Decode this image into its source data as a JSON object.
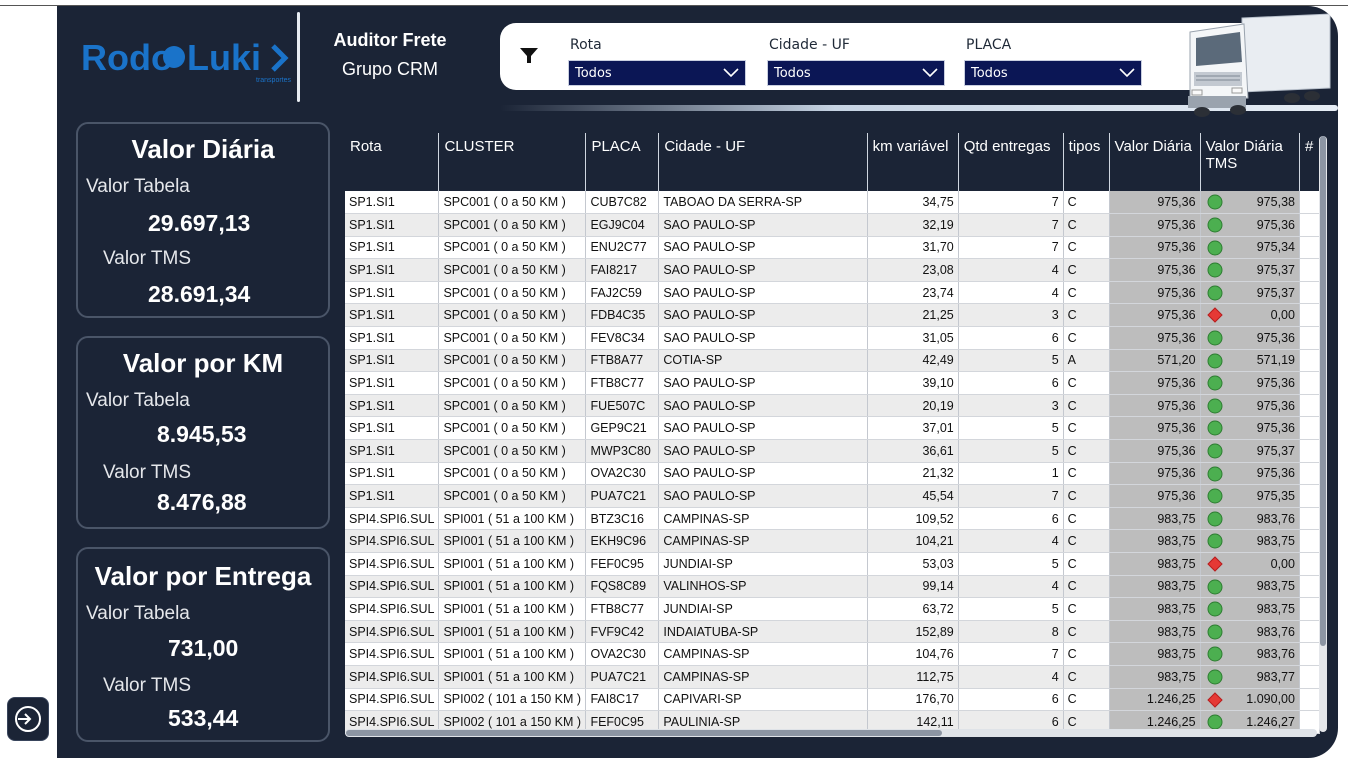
{
  "brand": {
    "logo_text_left": "Rodo",
    "logo_text_right": "Luki",
    "logo_tagline": "transportes",
    "title": "Auditor Frete",
    "subtitle": "Grupo CRM",
    "accent": "#1a73c9",
    "panel_bg": "#1b2436"
  },
  "filters": [
    {
      "label": "Rota",
      "value": "Todos"
    },
    {
      "label": "Cidade - UF",
      "value": "Todos"
    },
    {
      "label": "PLACA",
      "value": "Todos"
    }
  ],
  "cards": {
    "diaria": {
      "title": "Valor Diária",
      "lbl1": "Valor Tabela",
      "val1": "29.697,13",
      "lbl2": "Valor TMS",
      "val2": "28.691,34"
    },
    "km": {
      "title": "Valor por KM",
      "lbl1": "Valor Tabela",
      "val1": "8.945,53",
      "lbl2": "Valor TMS",
      "val2": "8.476,88"
    },
    "entrega": {
      "title": "Valor por Entrega",
      "lbl1": "Valor Tabela",
      "val1": "731,00",
      "lbl2": "Valor TMS",
      "val2": "533,44"
    }
  },
  "table": {
    "headers": [
      "Rota",
      "CLUSTER",
      "PLACA",
      "Cidade - UF",
      "km variável",
      "Qtd entregas",
      "tipos",
      "Valor Diária",
      "Valor Diária TMS",
      "#"
    ],
    "status_colors": {
      "ok": "#4caf50",
      "alert": "#e53935"
    },
    "rows": [
      [
        "SP1.SI1",
        "SPC001 ( 0 a 50 KM )",
        "CUB7C82",
        "TABOAO DA SERRA-SP",
        "34,75",
        "7",
        "C",
        "975,36",
        "ok",
        "975,38"
      ],
      [
        "SP1.SI1",
        "SPC001 ( 0 a 50 KM )",
        "EGJ9C04",
        "SAO PAULO-SP",
        "32,19",
        "7",
        "C",
        "975,36",
        "ok",
        "975,36"
      ],
      [
        "SP1.SI1",
        "SPC001 ( 0 a 50 KM )",
        "ENU2C77",
        "SAO PAULO-SP",
        "31,70",
        "7",
        "C",
        "975,36",
        "ok",
        "975,34"
      ],
      [
        "SP1.SI1",
        "SPC001 ( 0 a 50 KM )",
        "FAI8217",
        "SAO PAULO-SP",
        "23,08",
        "4",
        "C",
        "975,36",
        "ok",
        "975,37"
      ],
      [
        "SP1.SI1",
        "SPC001 ( 0 a 50 KM )",
        "FAJ2C59",
        "SAO PAULO-SP",
        "23,74",
        "4",
        "C",
        "975,36",
        "ok",
        "975,37"
      ],
      [
        "SP1.SI1",
        "SPC001 ( 0 a 50 KM )",
        "FDB4C35",
        "SAO PAULO-SP",
        "21,25",
        "3",
        "C",
        "975,36",
        "alert",
        "0,00"
      ],
      [
        "SP1.SI1",
        "SPC001 ( 0 a 50 KM )",
        "FEV8C34",
        "SAO PAULO-SP",
        "31,05",
        "6",
        "C",
        "975,36",
        "ok",
        "975,36"
      ],
      [
        "SP1.SI1",
        "SPC001 ( 0 a 50 KM )",
        "FTB8A77",
        "COTIA-SP",
        "42,49",
        "5",
        "A",
        "571,20",
        "ok",
        "571,19"
      ],
      [
        "SP1.SI1",
        "SPC001 ( 0 a 50 KM )",
        "FTB8C77",
        "SAO PAULO-SP",
        "39,10",
        "6",
        "C",
        "975,36",
        "ok",
        "975,36"
      ],
      [
        "SP1.SI1",
        "SPC001 ( 0 a 50 KM )",
        "FUE507C",
        "SAO PAULO-SP",
        "20,19",
        "3",
        "C",
        "975,36",
        "ok",
        "975,36"
      ],
      [
        "SP1.SI1",
        "SPC001 ( 0 a 50 KM )",
        "GEP9C21",
        "SAO PAULO-SP",
        "37,01",
        "5",
        "C",
        "975,36",
        "ok",
        "975,36"
      ],
      [
        "SP1.SI1",
        "SPC001 ( 0 a 50 KM )",
        "MWP3C80",
        "SAO PAULO-SP",
        "36,61",
        "5",
        "C",
        "975,36",
        "ok",
        "975,37"
      ],
      [
        "SP1.SI1",
        "SPC001 ( 0 a 50 KM )",
        "OVA2C30",
        "SAO PAULO-SP",
        "21,32",
        "1",
        "C",
        "975,36",
        "ok",
        "975,36"
      ],
      [
        "SP1.SI1",
        "SPC001 ( 0 a 50 KM )",
        "PUA7C21",
        "SAO PAULO-SP",
        "45,54",
        "7",
        "C",
        "975,36",
        "ok",
        "975,35"
      ],
      [
        "SPI4.SPI6.SUL",
        "SPI001 ( 51 a 100 KM )",
        "BTZ3C16",
        "CAMPINAS-SP",
        "109,52",
        "6",
        "C",
        "983,75",
        "ok",
        "983,76"
      ],
      [
        "SPI4.SPI6.SUL",
        "SPI001 ( 51 a 100 KM )",
        "EKH9C96",
        "CAMPINAS-SP",
        "104,21",
        "4",
        "C",
        "983,75",
        "ok",
        "983,75"
      ],
      [
        "SPI4.SPI6.SUL",
        "SPI001 ( 51 a 100 KM )",
        "FEF0C95",
        "JUNDIAI-SP",
        "53,03",
        "5",
        "C",
        "983,75",
        "alert",
        "0,00"
      ],
      [
        "SPI4.SPI6.SUL",
        "SPI001 ( 51 a 100 KM )",
        "FQS8C89",
        "VALINHOS-SP",
        "99,14",
        "4",
        "C",
        "983,75",
        "ok",
        "983,75"
      ],
      [
        "SPI4.SPI6.SUL",
        "SPI001 ( 51 a 100 KM )",
        "FTB8C77",
        "JUNDIAI-SP",
        "63,72",
        "5",
        "C",
        "983,75",
        "ok",
        "983,75"
      ],
      [
        "SPI4.SPI6.SUL",
        "SPI001 ( 51 a 100 KM )",
        "FVF9C42",
        "INDAIATUBA-SP",
        "152,89",
        "8",
        "C",
        "983,75",
        "ok",
        "983,76"
      ],
      [
        "SPI4.SPI6.SUL",
        "SPI001 ( 51 a 100 KM )",
        "OVA2C30",
        "CAMPINAS-SP",
        "104,76",
        "7",
        "C",
        "983,75",
        "ok",
        "983,76"
      ],
      [
        "SPI4.SPI6.SUL",
        "SPI001 ( 51 a 100 KM )",
        "PUA7C21",
        "CAMPINAS-SP",
        "112,75",
        "4",
        "C",
        "983,75",
        "ok",
        "983,77"
      ],
      [
        "SPI4.SPI6.SUL",
        "SPI002 ( 101 a 150 KM )",
        "FAI8C17",
        "CAPIVARI-SP",
        "176,70",
        "6",
        "C",
        "1.246,25",
        "alert",
        "1.090,00"
      ],
      [
        "SPI4.SPI6.SUL",
        "SPI002 ( 101 a 150 KM )",
        "FEF0C95",
        "PAULINIA-SP",
        "142,11",
        "6",
        "C",
        "1.246,25",
        "ok",
        "1.246,27"
      ]
    ]
  }
}
